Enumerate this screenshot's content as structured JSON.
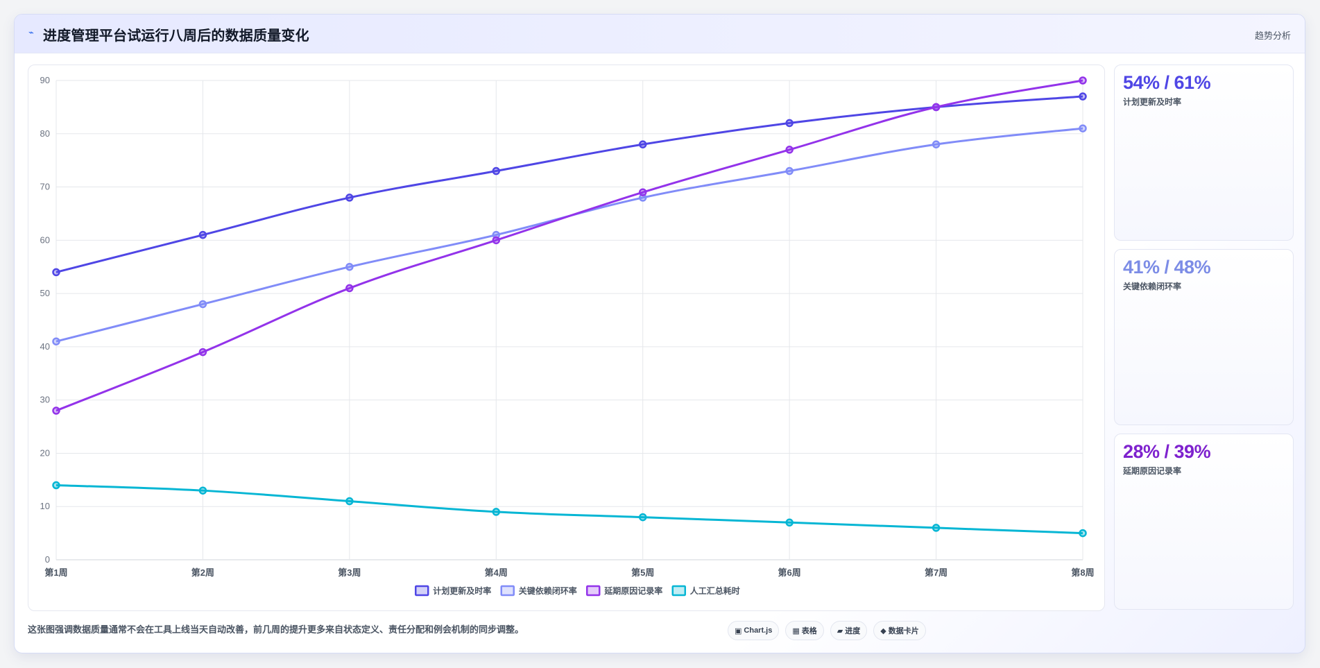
{
  "header": {
    "title_icon": "chart-line-icon",
    "title": "进度管理平台试运行八周后的数据质量变化",
    "right_label": "趋势分析"
  },
  "kpis": [
    {
      "value": "54% / 61%",
      "label": "计划更新及时率",
      "color": "#4f46e5"
    },
    {
      "value": "41% / 48%",
      "label": "关键依赖闭环率",
      "color": "#7c8ce6"
    },
    {
      "value": "28% / 39%",
      "label": "延期原因记录率",
      "color": "#7e22ce"
    }
  ],
  "footer": {
    "note": "这张图强调数据质量通常不会在工具上线当天自动改善，前几周的提升更多来自状态定义、责任分配和例会机制的同步调整。",
    "chips": [
      {
        "icon": "chart-icon",
        "glyph": "▣",
        "label": "Chart.js"
      },
      {
        "icon": "table-icon",
        "glyph": "▦",
        "label": "表格"
      },
      {
        "icon": "progress-icon",
        "glyph": "▰",
        "label": "进度"
      },
      {
        "icon": "data-card-icon",
        "glyph": "◆",
        "label": "数据卡片"
      }
    ]
  },
  "chart_data": {
    "type": "line",
    "categories": [
      "第1周",
      "第2周",
      "第3周",
      "第4周",
      "第5周",
      "第6周",
      "第7周",
      "第8周"
    ],
    "ylim": [
      0,
      90
    ],
    "yticks": [
      0,
      10,
      20,
      30,
      40,
      50,
      60,
      70,
      80,
      90
    ],
    "grid": true,
    "legend_position": "bottom",
    "series": [
      {
        "name": "计划更新及时率",
        "color": "#4f46e5",
        "values": [
          54,
          61,
          68,
          73,
          78,
          82,
          85,
          87
        ]
      },
      {
        "name": "关键依赖闭环率",
        "color": "#818cf8",
        "values": [
          41,
          48,
          55,
          61,
          68,
          73,
          78,
          81
        ]
      },
      {
        "name": "延期原因记录率",
        "color": "#9333ea",
        "values": [
          28,
          39,
          51,
          60,
          69,
          77,
          85,
          90
        ]
      },
      {
        "name": "人工汇总耗时",
        "color": "#06b6d4",
        "values": [
          14,
          13,
          11,
          9,
          8,
          7,
          6,
          5
        ]
      }
    ]
  }
}
